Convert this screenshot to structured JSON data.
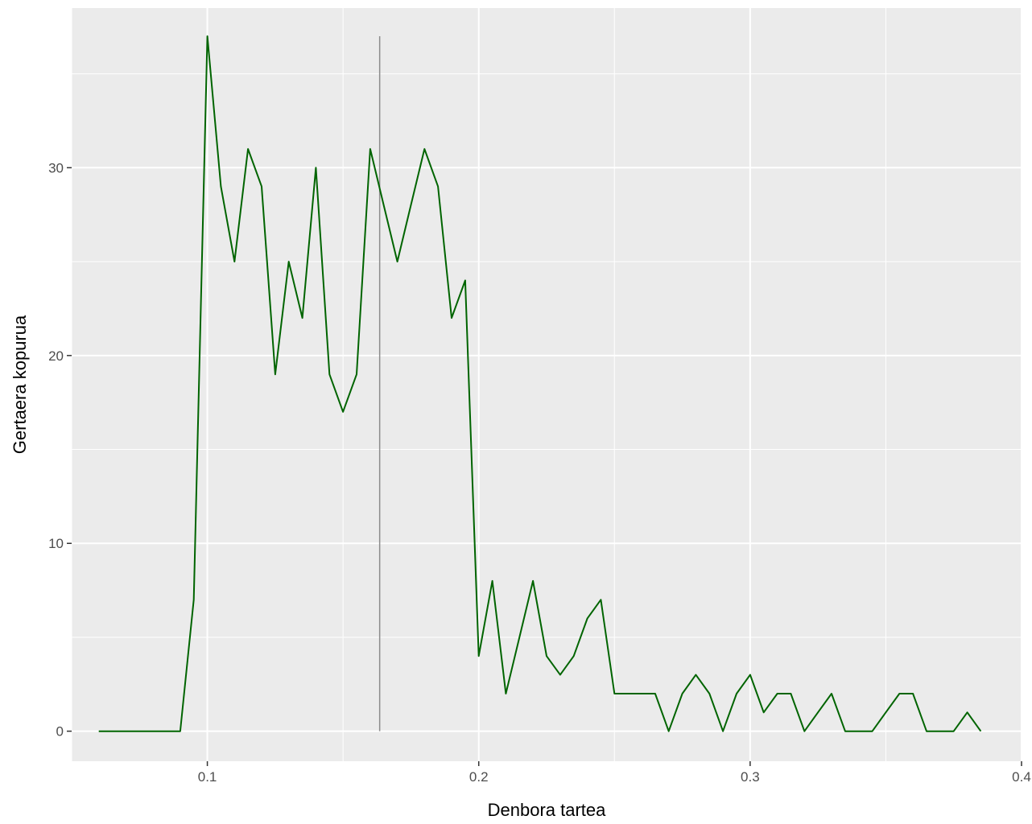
{
  "chart_data": {
    "type": "line",
    "title": "",
    "xlabel": "Denbora tartea",
    "ylabel": "Gertaera kopurua",
    "xlim": [
      0.05,
      0.4
    ],
    "ylim": [
      -1.6,
      38.5
    ],
    "x_ticks": [
      0.1,
      0.2,
      0.3,
      0.4
    ],
    "x_tick_labels": [
      "0.1",
      "0.2",
      "0.3",
      "0.4"
    ],
    "y_ticks": [
      0,
      10,
      20,
      30
    ],
    "y_tick_labels": [
      "0",
      "10",
      "20",
      "30"
    ],
    "grid": true,
    "background": "#ebebeb",
    "gridline_color": "#ffffff",
    "line_color": "#006400",
    "vline": {
      "x": 0.1635,
      "y_range": [
        0,
        37
      ],
      "color": "#8c8c8c"
    },
    "series": [
      {
        "x": [
          0.06,
          0.065,
          0.07,
          0.075,
          0.08,
          0.085,
          0.09,
          0.095,
          0.1,
          0.105,
          0.11,
          0.115,
          0.12,
          0.125,
          0.13,
          0.135,
          0.14,
          0.145,
          0.15,
          0.155,
          0.16,
          0.165,
          0.17,
          0.175,
          0.18,
          0.185,
          0.19,
          0.195,
          0.2,
          0.205,
          0.21,
          0.215,
          0.22,
          0.225,
          0.23,
          0.235,
          0.24,
          0.245,
          0.25,
          0.255,
          0.26,
          0.265,
          0.27,
          0.275,
          0.28,
          0.285,
          0.29,
          0.295,
          0.3,
          0.305,
          0.31,
          0.315,
          0.32,
          0.325,
          0.33,
          0.335,
          0.34,
          0.345,
          0.35,
          0.355,
          0.36,
          0.365,
          0.37,
          0.375,
          0.38,
          0.385
        ],
        "values": [
          0,
          0,
          0,
          0,
          0,
          0,
          0,
          7,
          37,
          29,
          25,
          31,
          29,
          19,
          25,
          22,
          30,
          19,
          17,
          19,
          31,
          28,
          25,
          28,
          31,
          29,
          22,
          24,
          4,
          8,
          2,
          5,
          8,
          4,
          3,
          4,
          6,
          7,
          2,
          2,
          2,
          2,
          0,
          2,
          3,
          2,
          0,
          2,
          3,
          1,
          2,
          2,
          0,
          1,
          2,
          0,
          0,
          0,
          1,
          2,
          2,
          0,
          0,
          0,
          1,
          0
        ]
      }
    ]
  }
}
